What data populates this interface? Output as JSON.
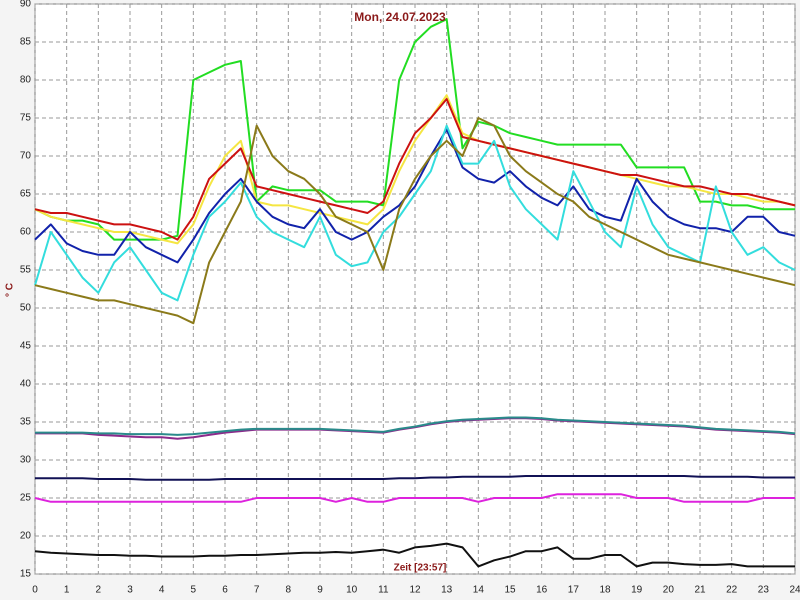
{
  "chart_data": {
    "type": "line",
    "title": "Mon, 24.07.2023",
    "y_label": "° C",
    "annotation": "Zeit [23:57]",
    "x": [
      0,
      0.5,
      1,
      1.5,
      2,
      2.5,
      3,
      3.5,
      4,
      4.5,
      5,
      5.5,
      6,
      6.5,
      7,
      7.5,
      8,
      8.5,
      9,
      9.5,
      10,
      10.5,
      11,
      11.5,
      12,
      12.5,
      13,
      13.5,
      14,
      14.5,
      15,
      15.5,
      16,
      16.5,
      17,
      17.5,
      18,
      18.5,
      19,
      19.5,
      20,
      20.5,
      21,
      21.5,
      22,
      22.5,
      23,
      23.5,
      24
    ],
    "xlim": [
      0,
      24
    ],
    "xticks": [
      0,
      1,
      2,
      3,
      4,
      5,
      6,
      7,
      8,
      9,
      10,
      11,
      12,
      13,
      14,
      15,
      16,
      17,
      18,
      19,
      20,
      21,
      22,
      23,
      24
    ],
    "ylim": [
      15,
      90
    ],
    "yticks": [
      15,
      20,
      25,
      30,
      35,
      40,
      45,
      50,
      55,
      60,
      65,
      70,
      75,
      80,
      85,
      90
    ],
    "grid": true,
    "series": [
      {
        "color": "#22dd22",
        "values": [
          63,
          62,
          61.5,
          61.5,
          61,
          59,
          59,
          59,
          59,
          59.5,
          80,
          81,
          82,
          82.5,
          64,
          66,
          65.5,
          65.5,
          65.5,
          64,
          64,
          64,
          63.5,
          80,
          85,
          87,
          88,
          71,
          74.5,
          74,
          73,
          72.5,
          72,
          71.5,
          71.5,
          71.5,
          71.5,
          71.5,
          68.5,
          68.5,
          68.5,
          68.5,
          64,
          64,
          63.5,
          63.5,
          63,
          63,
          63
        ]
      },
      {
        "color": "#f5e642",
        "values": [
          63,
          62,
          61.5,
          61,
          60.5,
          60,
          60,
          59.5,
          59,
          58.5,
          61,
          66,
          70,
          72,
          64,
          63.5,
          63.5,
          63,
          62.5,
          62,
          61.5,
          61,
          63,
          68,
          72,
          75,
          78,
          73,
          72,
          71.5,
          71,
          70.5,
          70,
          69.5,
          69,
          68.5,
          68,
          67.5,
          67,
          66.5,
          66,
          66,
          65.5,
          65,
          65,
          64.5,
          64,
          64,
          63.5
        ]
      },
      {
        "color": "#cc1111",
        "values": [
          63,
          62.5,
          62.5,
          62,
          61.5,
          61,
          61,
          60.5,
          60,
          59,
          62,
          67,
          69,
          71,
          66,
          65.5,
          65,
          64.5,
          64,
          63.5,
          63,
          62.5,
          64,
          69,
          73,
          75,
          77.5,
          72.5,
          72,
          71.5,
          71,
          70.5,
          70,
          69.5,
          69,
          68.5,
          68,
          67.5,
          67.5,
          67,
          66.5,
          66,
          66,
          65.5,
          65,
          65,
          64.5,
          64,
          63.5
        ]
      },
      {
        "color": "#1122aa",
        "values": [
          59,
          61,
          58.5,
          57.5,
          57,
          57,
          60,
          58,
          57,
          56,
          59,
          62.5,
          65,
          67,
          64,
          62,
          61,
          60.5,
          63,
          60,
          59,
          60,
          62,
          63.5,
          66,
          70,
          73.5,
          68.5,
          67,
          66.5,
          68,
          66,
          64.5,
          63.5,
          66,
          63,
          62,
          61.5,
          67,
          64,
          62,
          61,
          60.5,
          60.5,
          60,
          62,
          62,
          60,
          59.5
        ]
      },
      {
        "color": "#33dddd",
        "values": [
          53,
          60,
          57,
          54,
          52,
          56,
          58,
          55,
          52,
          51,
          57,
          62,
          64,
          66.5,
          62,
          60,
          59,
          58,
          62,
          57,
          55.5,
          56,
          60,
          62,
          65,
          68,
          74,
          69,
          69,
          72,
          66,
          63,
          61,
          59,
          68,
          64,
          60,
          58,
          66,
          61,
          58,
          57,
          56,
          66,
          60,
          57,
          58,
          56,
          55
        ]
      },
      {
        "color": "#8b7a1a",
        "values": [
          53,
          52.5,
          52,
          51.5,
          51,
          51,
          50.5,
          50,
          49.5,
          49,
          48,
          56,
          60,
          64,
          74,
          70,
          68,
          67,
          65,
          62,
          61,
          60,
          55,
          63,
          67,
          70,
          72,
          70,
          75,
          74,
          70,
          68,
          66.5,
          65,
          64,
          62,
          61,
          60,
          59,
          58,
          57,
          56.5,
          56,
          55.5,
          55,
          54.5,
          54,
          53.5,
          53
        ]
      },
      {
        "color": "#8b2a8b",
        "values": [
          33.5,
          33.5,
          33.5,
          33.5,
          33.3,
          33.2,
          33.1,
          33,
          33,
          32.8,
          33,
          33.3,
          33.6,
          33.8,
          34,
          34,
          34,
          34,
          34,
          33.9,
          33.8,
          33.7,
          33.6,
          34,
          34.3,
          34.7,
          35,
          35.2,
          35.3,
          35.4,
          35.5,
          35.5,
          35.4,
          35.2,
          35.1,
          35,
          34.9,
          34.8,
          34.7,
          34.6,
          34.5,
          34.4,
          34.2,
          34,
          33.9,
          33.8,
          33.7,
          33.6,
          33.4
        ]
      },
      {
        "color": "#2a8b8b",
        "values": [
          33.6,
          33.6,
          33.6,
          33.6,
          33.5,
          33.5,
          33.4,
          33.4,
          33.4,
          33.3,
          33.4,
          33.6,
          33.8,
          34,
          34.1,
          34.1,
          34.1,
          34.1,
          34.1,
          34,
          33.9,
          33.8,
          33.7,
          34.1,
          34.4,
          34.8,
          35.1,
          35.3,
          35.4,
          35.5,
          35.6,
          35.6,
          35.5,
          35.3,
          35.2,
          35.1,
          35,
          34.9,
          34.8,
          34.7,
          34.6,
          34.5,
          34.3,
          34.1,
          34,
          33.9,
          33.8,
          33.7,
          33.5
        ]
      },
      {
        "color": "#111155",
        "values": [
          27.6,
          27.6,
          27.6,
          27.6,
          27.5,
          27.5,
          27.5,
          27.4,
          27.4,
          27.4,
          27.4,
          27.4,
          27.5,
          27.5,
          27.5,
          27.5,
          27.5,
          27.5,
          27.5,
          27.5,
          27.5,
          27.5,
          27.5,
          27.6,
          27.6,
          27.7,
          27.7,
          27.8,
          27.8,
          27.8,
          27.8,
          27.9,
          27.9,
          27.9,
          27.9,
          27.9,
          27.9,
          27.9,
          27.9,
          27.9,
          27.9,
          27.9,
          27.8,
          27.8,
          27.8,
          27.8,
          27.7,
          27.7,
          27.7
        ]
      },
      {
        "color": "#dd22dd",
        "values": [
          25,
          24.5,
          24.5,
          24.5,
          24.5,
          24.5,
          24.5,
          24.5,
          24.5,
          24.5,
          24.5,
          24.5,
          24.5,
          24.5,
          25,
          25,
          25,
          25,
          25,
          24.5,
          25,
          24.5,
          24.5,
          25,
          25,
          25,
          25,
          25,
          24.5,
          25,
          25,
          25,
          25,
          25.5,
          25.5,
          25.5,
          25.5,
          25.5,
          25,
          25,
          25,
          24.5,
          24.5,
          24.5,
          24.5,
          24.5,
          25,
          25,
          25
        ]
      },
      {
        "color": "#111111",
        "values": [
          18,
          17.8,
          17.7,
          17.6,
          17.5,
          17.5,
          17.4,
          17.4,
          17.3,
          17.3,
          17.3,
          17.4,
          17.4,
          17.5,
          17.5,
          17.6,
          17.7,
          17.8,
          17.8,
          17.9,
          17.8,
          18,
          18.2,
          17.8,
          18.5,
          18.7,
          19,
          18.5,
          16,
          16.8,
          17.3,
          18,
          18,
          18.5,
          17,
          17,
          17.5,
          17.5,
          16,
          16.5,
          16.5,
          16.3,
          16.2,
          16.2,
          16.3,
          16,
          16,
          16,
          16
        ]
      }
    ]
  }
}
